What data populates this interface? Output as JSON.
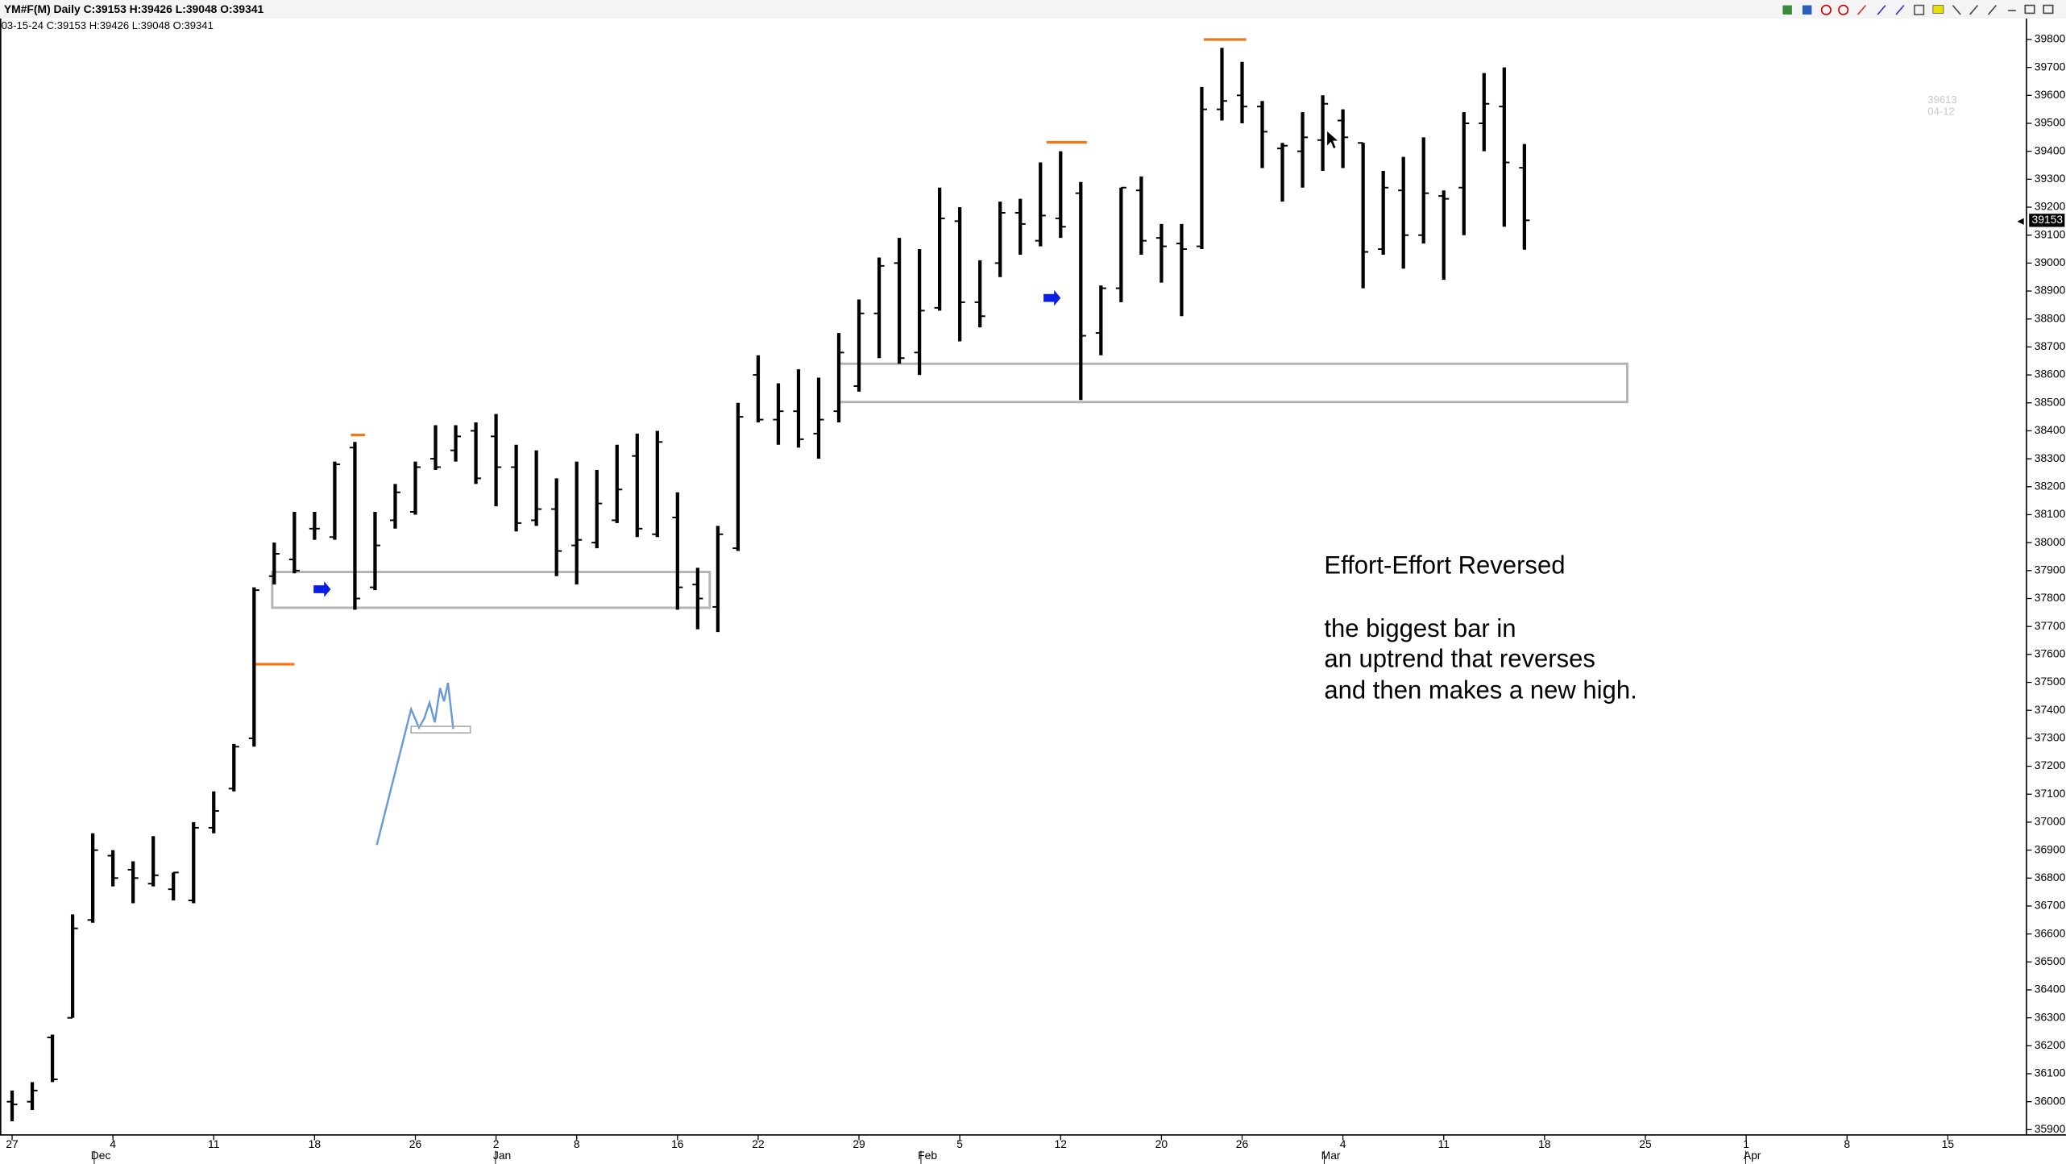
{
  "header": {
    "symbol_line": "YM#F(M) Daily C:39153 H:39426 L:39048 O:39341",
    "bar_line": "03-15-24 C:39153 H:39426 L:39048 O:39341"
  },
  "hover_info": {
    "price": "39613",
    "date": "04-12"
  },
  "chart_data": {
    "type": "ohlc",
    "open": [
      36000,
      36000,
      36230,
      36300,
      36650,
      36880,
      36830,
      36780,
      36760,
      36720,
      36980,
      37120,
      37300,
      37880,
      37940,
      38050,
      38020,
      38340,
      37840,
      38080,
      38110,
      38300,
      38330,
      38400,
      38380,
      38270,
      38080,
      38120,
      37990,
      38000,
      38080,
      38310,
      38030,
      38090,
      37850,
      37770,
      37980,
      38600,
      38440,
      38470,
      38390,
      38470,
      38560,
      38820,
      39000,
      38680,
      38840,
      39150,
      38860,
      39000,
      39180,
      39080,
      39160,
      39250,
      38750,
      38910,
      39260,
      39090,
      39070,
      39060,
      39550,
      39600,
      39560,
      39410,
      39400,
      39440,
      39510,
      39430,
      39050,
      39260,
      39100,
      39240,
      39270,
      39500,
      39560,
      39341
    ],
    "high": [
      36040,
      36070,
      36240,
      36670,
      36960,
      36900,
      36860,
      36950,
      36820,
      37000,
      37110,
      37280,
      37840,
      38000,
      38110,
      38110,
      38290,
      38360,
      38110,
      38210,
      38290,
      38420,
      38420,
      38430,
      38460,
      38350,
      38330,
      38230,
      38290,
      38260,
      38350,
      38390,
      38400,
      38180,
      37910,
      38060,
      38500,
      38670,
      38570,
      38620,
      38590,
      38750,
      38870,
      39020,
      39090,
      39050,
      39270,
      39200,
      39010,
      39220,
      39230,
      39360,
      39400,
      39290,
      38920,
      39270,
      39310,
      39140,
      39140,
      39630,
      39770,
      39720,
      39580,
      39430,
      39540,
      39600,
      39550,
      39430,
      39330,
      39380,
      39450,
      39260,
      39540,
      39680,
      39700,
      39426
    ],
    "low": [
      35930,
      35970,
      36070,
      36300,
      36640,
      36770,
      36710,
      36770,
      36720,
      36710,
      36960,
      37110,
      37270,
      37850,
      37890,
      38010,
      38010,
      37760,
      37830,
      38050,
      38100,
      38260,
      38290,
      38210,
      38130,
      38040,
      38060,
      37880,
      37850,
      37980,
      38070,
      38020,
      38020,
      37760,
      37690,
      37680,
      37970,
      38430,
      38350,
      38340,
      38300,
      38430,
      38540,
      38660,
      38640,
      38600,
      38830,
      38720,
      38770,
      38950,
      39030,
      39060,
      39090,
      38510,
      38670,
      38860,
      39030,
      38930,
      38810,
      39050,
      39510,
      39500,
      39340,
      39220,
      39270,
      39330,
      39340,
      38910,
      39030,
      38980,
      39070,
      38940,
      39100,
      39400,
      39130,
      39048
    ],
    "close": [
      35990,
      36040,
      36080,
      36620,
      36900,
      36800,
      36800,
      36810,
      36820,
      36980,
      37040,
      37270,
      37830,
      37960,
      37900,
      38050,
      38280,
      37800,
      37990,
      38180,
      38270,
      38270,
      38380,
      38230,
      38270,
      38070,
      38120,
      37970,
      38010,
      38140,
      38190,
      38050,
      38360,
      37840,
      37800,
      38030,
      38450,
      38440,
      38470,
      38370,
      38440,
      38680,
      38820,
      38990,
      38660,
      38830,
      39160,
      38860,
      38810,
      39180,
      39140,
      39170,
      39130,
      38740,
      38910,
      39270,
      39080,
      39060,
      39050,
      39550,
      39580,
      39560,
      39470,
      39420,
      39450,
      39570,
      39450,
      39040,
      39270,
      39100,
      39250,
      39230,
      39500,
      39570,
      39360,
      39153
    ],
    "color": "#000000",
    "last_price": 39153,
    "xlim": [
      -0.6,
      99.9
    ],
    "ylim": [
      35881,
      39941
    ],
    "yticks": [
      35900,
      36000,
      36100,
      36200,
      36300,
      36400,
      36500,
      36600,
      36700,
      36800,
      36900,
      37000,
      37100,
      37200,
      37300,
      37400,
      37500,
      37600,
      37700,
      37800,
      37900,
      38000,
      38100,
      38200,
      38300,
      38400,
      38500,
      38600,
      38700,
      38800,
      38900,
      39000,
      39100,
      39200,
      39300,
      39400,
      39500,
      39600,
      39700,
      39800
    ],
    "xticks": [
      {
        "value": 0,
        "label": "27"
      },
      {
        "value": 5,
        "label": "4"
      },
      {
        "value": 10,
        "label": "11"
      },
      {
        "value": 15,
        "label": "18"
      },
      {
        "value": 20,
        "label": "26"
      },
      {
        "value": 24,
        "label": "2"
      },
      {
        "value": 28,
        "label": "8"
      },
      {
        "value": 33,
        "label": "16"
      },
      {
        "value": 37,
        "label": "22"
      },
      {
        "value": 42,
        "label": "29"
      },
      {
        "value": 47,
        "label": "5"
      },
      {
        "value": 52,
        "label": "12"
      },
      {
        "value": 57,
        "label": "20"
      },
      {
        "value": 61,
        "label": "26"
      },
      {
        "value": 66,
        "label": "4"
      },
      {
        "value": 71,
        "label": "11"
      },
      {
        "value": 76,
        "label": "18"
      },
      {
        "value": 81,
        "label": "25"
      },
      {
        "value": 86,
        "label": "1"
      },
      {
        "value": 91,
        "label": "8"
      },
      {
        "value": 96,
        "label": "15"
      }
    ],
    "month_labels": [
      {
        "value": 4.4,
        "label": "Dec"
      },
      {
        "value": 24.3,
        "label": "Jan"
      },
      {
        "value": 45.4,
        "label": "Feb"
      },
      {
        "value": 65.4,
        "label": "Mar"
      },
      {
        "value": 86.3,
        "label": "Apr"
      }
    ],
    "levels": {
      "color": "#f07818",
      "items": [
        {
          "price": 37565,
          "from": 11.95,
          "to": 14.0
        },
        {
          "price": 38385,
          "from": 16.8,
          "to": 17.5
        },
        {
          "price": 39432,
          "from": 51.3,
          "to": 53.3
        },
        {
          "price": 39800,
          "from": 59.1,
          "to": 61.2
        }
      ]
    },
    "zones": {
      "color": "#b4b4b4",
      "items": [
        {
          "top": 37895,
          "bottom": 37767,
          "from": 12.9,
          "to": 34.6
        },
        {
          "top": 38640,
          "bottom": 38503,
          "from": 41,
          "to": 80.1
        }
      ]
    },
    "annotation": [
      "Effort-Effort Reversed",
      "the biggest bar in",
      "an uptrend that reverses",
      "and then makes a new high."
    ]
  }
}
